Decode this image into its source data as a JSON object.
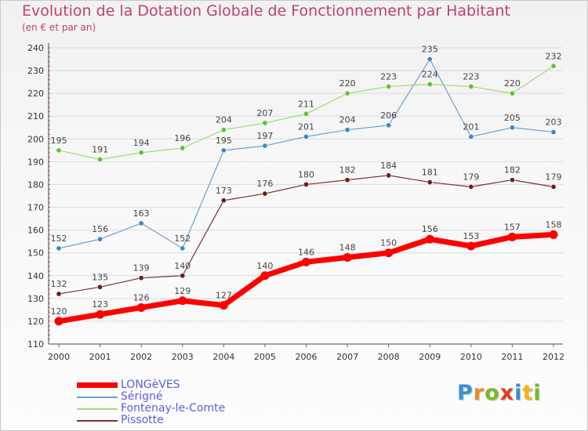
{
  "title": "Evolution de la Dotation Globale de Fonctionnement par Habitant",
  "subtitle": "(en € et par an)",
  "logo": {
    "letters": [
      "P",
      "r",
      "o",
      "x",
      "i",
      "t",
      "i"
    ],
    "colors": [
      "#3a8fd8",
      "#f08a1c",
      "#7ab828",
      "#e23a2a",
      "#3a8fd8",
      "#f0b41c",
      "#7ab828"
    ]
  },
  "chart_data": {
    "type": "line",
    "title": "Evolution de la Dotation Globale de Fonctionnement par Habitant",
    "subtitle": "(en € et par an)",
    "xlabel": "",
    "ylabel": "",
    "ylim": [
      110,
      240
    ],
    "yticks": [
      110,
      120,
      130,
      140,
      150,
      160,
      170,
      180,
      190,
      200,
      210,
      220,
      230,
      240
    ],
    "grid": "horizontal",
    "legend_position": "bottom-left",
    "x": [
      "2000",
      "2001",
      "2002",
      "2003",
      "2004",
      "2005",
      "2006",
      "2007",
      "2008",
      "2009",
      "2010",
      "2011",
      "2012"
    ],
    "series": [
      {
        "name": "Sérigné",
        "color": "#6e9fcc",
        "marker": "#3a87d0",
        "width": 1.2,
        "values": [
          152,
          156,
          163,
          152,
          195,
          197,
          201,
          204,
          206,
          235,
          201,
          205,
          203
        ]
      },
      {
        "name": "Fontenay-le-Comte",
        "color": "#9edc78",
        "marker": "#5cc23a",
        "width": 1.2,
        "values": [
          195,
          191,
          194,
          196,
          204,
          207,
          211,
          220,
          223,
          224,
          223,
          220,
          232
        ]
      },
      {
        "name": "Pissotte",
        "color": "#7a3030",
        "marker": "#6e1e1e",
        "width": 1.2,
        "values": [
          132,
          135,
          139,
          140,
          173,
          176,
          180,
          182,
          184,
          181,
          179,
          182,
          179
        ]
      },
      {
        "name": "LONGèVES",
        "color": "#ff0000",
        "marker": "#ff0000",
        "width": 7,
        "values": [
          120,
          123,
          126,
          129,
          127,
          140,
          146,
          148,
          150,
          156,
          153,
          157,
          158
        ]
      }
    ],
    "legend_order": [
      "LONGèVES",
      "Sérigné",
      "Fontenay-le-Comte",
      "Pissotte"
    ]
  }
}
